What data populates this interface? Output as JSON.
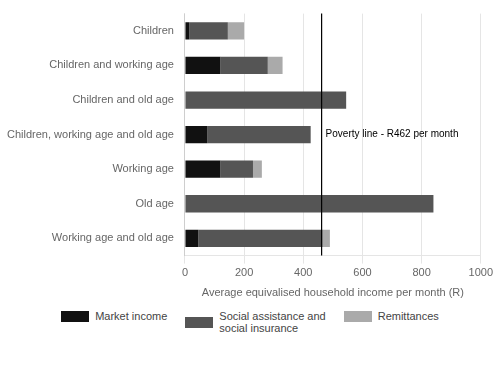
{
  "chart_data": {
    "type": "bar",
    "orientation": "horizontal",
    "stacked": true,
    "categories": [
      "Children",
      "Children and working age",
      "Children and old age",
      "Children, working age and old age",
      "Working age",
      "Old age",
      "Working age and old age"
    ],
    "series": [
      {
        "name": "Market income",
        "color": "#111111",
        "values": [
          15,
          120,
          0,
          75,
          120,
          0,
          45
        ]
      },
      {
        "name": "Social assistance and\nsocial insurance",
        "color": "#555555",
        "values": [
          130,
          160,
          545,
          350,
          110,
          840,
          420
        ]
      },
      {
        "name": "Remittances",
        "color": "#aaaaaa",
        "values": [
          55,
          50,
          0,
          0,
          30,
          0,
          25
        ]
      }
    ],
    "xlabel": "Average equivalised household income per month (R)",
    "xlim": [
      0,
      1000
    ],
    "xticks": [
      0,
      200,
      400,
      600,
      800,
      1000
    ],
    "grid": true,
    "legend": "bottom",
    "annotations": [
      {
        "x": 462,
        "text": "Poverty line - R462 per month"
      }
    ]
  }
}
